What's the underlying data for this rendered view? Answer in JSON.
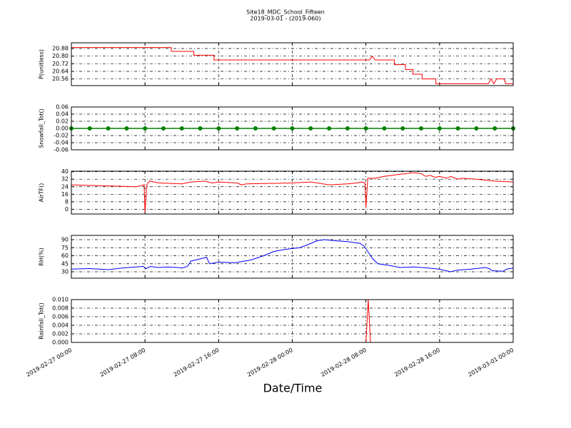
{
  "title": "Site18_MDC_School_Fifteen",
  "subtitle": "2019-03-01 - (2019-060)",
  "xlabel": "Date/Time",
  "chart_data": [
    {
      "type": "line",
      "ylabel": "P(unitless)",
      "grid": true,
      "xlim": [
        "2019-02-27 00:00",
        "2019-03-01 00:00"
      ],
      "xticks": [
        "2019-02-27 00:00",
        "2019-02-27 08:00",
        "2019-02-27 16:00",
        "2019-02-28 00:00",
        "2019-02-28 08:00",
        "2019-02-28 16:00",
        "2019-03-01 00:00"
      ],
      "ylim": [
        20.49,
        20.94
      ],
      "yticks": [
        {
          "value": 20.56,
          "label": "20.56"
        },
        {
          "value": 20.64,
          "label": "20.64"
        },
        {
          "value": 20.72,
          "label": "20.72"
        },
        {
          "value": 20.8,
          "label": "20.80"
        },
        {
          "value": 20.88,
          "label": "20.88"
        }
      ],
      "x": [
        "2019-02-27 00:00",
        "2019-02-27 10:51",
        "2019-02-27 10:51",
        "2019-02-27 13:18",
        "2019-02-27 13:18",
        "2019-02-27 15:30",
        "2019-02-27 15:30",
        "2019-02-28 08:24",
        "2019-02-28 08:42",
        "2019-02-28 09:00",
        "2019-02-28 11:06",
        "2019-02-28 11:06",
        "2019-02-28 12:18",
        "2019-02-28 12:18",
        "2019-02-28 13:06",
        "2019-02-28 13:06",
        "2019-02-28 14:06",
        "2019-02-28 14:06",
        "2019-02-28 15:36",
        "2019-02-28 15:36",
        "2019-02-28 21:18",
        "2019-02-28 21:36",
        "2019-02-28 21:54",
        "2019-02-28 22:12",
        "2019-02-28 23:00",
        "2019-02-28 23:12",
        "2019-03-01 00:00"
      ],
      "series": [
        {
          "color": "#ff0000",
          "values": [
            20.89,
            20.89,
            20.85,
            20.85,
            20.81,
            20.81,
            20.76,
            20.76,
            20.8,
            20.76,
            20.76,
            20.71,
            20.71,
            20.66,
            20.66,
            20.61,
            20.61,
            20.56,
            20.56,
            20.51,
            20.51,
            20.56,
            20.51,
            20.56,
            20.56,
            20.51,
            20.51
          ]
        }
      ]
    },
    {
      "type": "line",
      "ylabel": "Snowfall_Tot()",
      "grid": true,
      "xlim": [
        "2019-02-27 00:00",
        "2019-03-01 00:00"
      ],
      "xticks": [
        "2019-02-27 00:00",
        "2019-02-27 08:00",
        "2019-02-27 16:00",
        "2019-02-28 00:00",
        "2019-02-28 08:00",
        "2019-02-28 16:00",
        "2019-03-01 00:00"
      ],
      "ylim": [
        -0.06,
        0.06
      ],
      "yticks": [
        -0.06,
        -0.04,
        -0.02,
        {
          "value": 0,
          "label": "0.00"
        },
        0.02,
        0.04,
        0.06
      ],
      "x": [
        "2019-02-27 00:00",
        "2019-02-27 02:00",
        "2019-02-27 04:00",
        "2019-02-27 06:00",
        "2019-02-27 08:00",
        "2019-02-27 10:00",
        "2019-02-27 12:00",
        "2019-02-27 14:00",
        "2019-02-27 16:00",
        "2019-02-27 18:00",
        "2019-02-27 20:00",
        "2019-02-27 22:00",
        "2019-02-28 00:00",
        "2019-02-28 02:00",
        "2019-02-28 04:00",
        "2019-02-28 06:00",
        "2019-02-28 08:00",
        "2019-02-28 10:00",
        "2019-02-28 12:00",
        "2019-02-28 14:00",
        "2019-02-28 16:00",
        "2019-02-28 18:00",
        "2019-02-28 20:00",
        "2019-02-28 22:00",
        "2019-03-01 00:00"
      ],
      "series": [
        {
          "color": "#008000",
          "marker": true,
          "values": [
            0,
            0,
            0,
            0,
            0,
            0,
            0,
            0,
            0,
            0,
            0,
            0,
            0,
            0,
            0,
            0,
            0,
            0,
            0,
            0,
            0,
            0,
            0,
            0,
            0
          ]
        }
      ]
    },
    {
      "type": "line",
      "ylabel": "AirTF()",
      "grid": true,
      "xlim": [
        "2019-02-27 00:00",
        "2019-03-01 00:00"
      ],
      "xticks": [
        "2019-02-27 00:00",
        "2019-02-27 08:00",
        "2019-02-27 16:00",
        "2019-02-28 00:00",
        "2019-02-28 08:00",
        "2019-02-28 16:00",
        "2019-03-01 00:00"
      ],
      "ylim": [
        -5,
        40.5
      ],
      "yticks": [
        0,
        8,
        16,
        24,
        32,
        40
      ],
      "x": [
        "2019-02-27 00:00",
        "2019-02-27 07:00",
        "2019-02-27 07:30",
        "2019-02-27 07:54",
        "2019-02-27 08:00",
        "2019-02-27 08:12",
        "2019-02-27 08:30",
        "2019-02-27 09:30",
        "2019-02-27 12:00",
        "2019-02-27 13:00",
        "2019-02-27 14:30",
        "2019-02-27 15:18",
        "2019-02-27 16:00",
        "2019-02-27 18:00",
        "2019-02-27 18:30",
        "2019-02-27 19:00",
        "2019-02-28 00:00",
        "2019-02-28 02:00",
        "2019-02-28 04:00",
        "2019-02-28 06:00",
        "2019-02-28 07:00",
        "2019-02-28 07:36",
        "2019-02-28 07:54",
        "2019-02-28 08:00",
        "2019-02-28 08:12",
        "2019-02-28 09:00",
        "2019-02-28 10:00",
        "2019-02-28 11:30",
        "2019-02-28 12:30",
        "2019-02-28 13:00",
        "2019-02-28 14:00",
        "2019-02-28 14:30",
        "2019-02-28 15:00",
        "2019-02-28 15:30",
        "2019-02-28 16:00",
        "2019-02-28 16:48",
        "2019-02-28 17:12",
        "2019-02-28 18:00",
        "2019-02-28 18:30",
        "2019-02-28 20:00",
        "2019-02-28 22:00",
        "2019-03-01 00:00"
      ],
      "series": [
        {
          "color": "#ff0000",
          "values": [
            26,
            24,
            25,
            26,
            -3,
            26,
            30,
            28,
            27,
            29,
            30,
            28,
            29,
            28,
            26,
            27,
            28,
            29,
            26,
            27,
            28,
            29,
            28,
            2,
            33,
            33,
            35,
            37,
            38,
            39,
            38,
            35,
            36,
            34,
            35,
            33,
            35,
            32,
            33,
            32,
            30,
            29
          ]
        }
      ]
    },
    {
      "type": "line",
      "ylabel": "RH(%)",
      "grid": true,
      "xlim": [
        "2019-02-27 00:00",
        "2019-03-01 00:00"
      ],
      "xticks": [
        "2019-02-27 00:00",
        "2019-02-27 08:00",
        "2019-02-27 16:00",
        "2019-02-28 00:00",
        "2019-02-28 08:00",
        "2019-02-28 16:00",
        "2019-03-01 00:00"
      ],
      "ylim": [
        18,
        98
      ],
      "yticks": [
        30,
        45,
        60,
        75,
        90
      ],
      "x": [
        "2019-02-27 00:00",
        "2019-02-27 02:00",
        "2019-02-27 04:00",
        "2019-02-27 05:30",
        "2019-02-27 07:00",
        "2019-02-27 07:48",
        "2019-02-27 08:06",
        "2019-02-27 08:36",
        "2019-02-27 09:24",
        "2019-02-27 10:30",
        "2019-02-27 11:30",
        "2019-02-27 12:00",
        "2019-02-27 12:36",
        "2019-02-27 13:00",
        "2019-02-27 14:42",
        "2019-02-27 15:00",
        "2019-02-27 16:00",
        "2019-02-27 17:48",
        "2019-02-27 19:30",
        "2019-02-27 20:54",
        "2019-02-27 22:00",
        "2019-02-27 23:18",
        "2019-02-28 00:48",
        "2019-02-28 01:36",
        "2019-02-28 02:42",
        "2019-02-28 03:30",
        "2019-02-28 04:42",
        "2019-02-28 06:12",
        "2019-02-28 07:24",
        "2019-02-28 07:48",
        "2019-02-28 08:12",
        "2019-02-28 08:42",
        "2019-02-28 09:18",
        "2019-02-28 10:30",
        "2019-02-28 11:42",
        "2019-02-28 13:12",
        "2019-02-28 14:48",
        "2019-02-28 15:54",
        "2019-02-28 16:42",
        "2019-02-28 17:12",
        "2019-02-28 17:54",
        "2019-02-28 19:24",
        "2019-02-28 21:00",
        "2019-02-28 21:24",
        "2019-02-28 21:42",
        "2019-02-28 22:54",
        "2019-02-28 23:18",
        "2019-03-01 00:00"
      ],
      "series": [
        {
          "color": "#0000ff",
          "values": [
            35,
            36,
            34,
            37,
            39,
            40,
            36,
            40,
            38,
            39,
            38,
            37,
            40,
            50,
            57,
            45,
            48,
            47,
            52,
            60,
            68,
            72,
            75,
            80,
            88,
            90,
            88,
            86,
            83,
            78,
            68,
            55,
            45,
            42,
            38,
            39,
            37,
            35,
            32,
            30,
            33,
            35,
            38,
            36,
            32,
            31,
            35,
            37
          ]
        }
      ]
    },
    {
      "type": "line",
      "ylabel": "Rainfall_Tot()",
      "grid": true,
      "xlim": [
        "2019-02-27 00:00",
        "2019-03-01 00:00"
      ],
      "xticks": [
        "2019-02-27 00:00",
        "2019-02-27 08:00",
        "2019-02-27 16:00",
        "2019-02-28 00:00",
        "2019-02-28 08:00",
        "2019-02-28 16:00",
        "2019-03-01 00:00"
      ],
      "ylim": [
        0,
        0.01
      ],
      "yticks": [
        {
          "value": 0,
          "label": "0.000"
        },
        0.002,
        0.004,
        0.006,
        0.008,
        {
          "value": 0.01,
          "label": "0.010"
        }
      ],
      "x": [
        "2019-02-27 00:00",
        "2019-02-28 08:00",
        "2019-02-28 08:15",
        "2019-02-28 08:30",
        "2019-03-01 00:00"
      ],
      "series": [
        {
          "color": "#ff0000",
          "values": [
            0,
            0,
            0.01,
            0,
            0
          ]
        }
      ]
    }
  ]
}
